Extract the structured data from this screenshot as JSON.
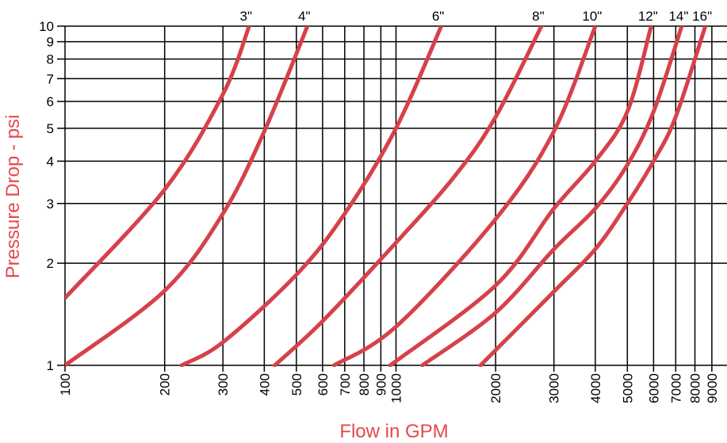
{
  "chart_data": {
    "type": "line",
    "title": "",
    "xlabel": "Flow in GPM",
    "ylabel": "Pressure Drop - psi",
    "x_scale": "log",
    "y_scale": "log",
    "xlim": [
      100,
      9000
    ],
    "ylim": [
      1,
      10
    ],
    "grid": true,
    "x_ticks": [
      {
        "value": 100,
        "label": "100"
      },
      {
        "value": 200,
        "label": "200"
      },
      {
        "value": 300,
        "label": "300"
      },
      {
        "value": 400,
        "label": "400"
      },
      {
        "value": 500,
        "label": "500"
      },
      {
        "value": 600,
        "label": "600"
      },
      {
        "value": 700,
        "label": "700"
      },
      {
        "value": 800,
        "label": "800"
      },
      {
        "value": 900,
        "label": "900"
      },
      {
        "value": 1000,
        "label": "1000"
      },
      {
        "value": 2000,
        "label": "2000"
      },
      {
        "value": 3000,
        "label": "3000"
      },
      {
        "value": 4000,
        "label": "4000"
      },
      {
        "value": 5000,
        "label": "5000"
      },
      {
        "value": 6000,
        "label": "6000"
      },
      {
        "value": 7000,
        "label": "7000"
      },
      {
        "value": 8000,
        "label": "8000"
      },
      {
        "value": 9000,
        "label": "9000"
      }
    ],
    "y_ticks": [
      {
        "value": 1,
        "label": "1"
      },
      {
        "value": 2,
        "label": "2"
      },
      {
        "value": 3,
        "label": "3"
      },
      {
        "value": 4,
        "label": "4"
      },
      {
        "value": 5,
        "label": "5"
      },
      {
        "value": 6,
        "label": "6"
      },
      {
        "value": 7,
        "label": "7"
      },
      {
        "value": 8,
        "label": "8"
      },
      {
        "value": 9,
        "label": "9"
      },
      {
        "value": 10,
        "label": "10"
      }
    ],
    "series": [
      {
        "name": "3\"",
        "points": [
          [
            100,
            1.58
          ],
          [
            200,
            3.3
          ],
          [
            300,
            6.3
          ],
          [
            360,
            10
          ]
        ]
      },
      {
        "name": "4\"",
        "points": [
          [
            100,
            1.0
          ],
          [
            200,
            1.66
          ],
          [
            300,
            2.8
          ],
          [
            400,
            4.9
          ],
          [
            540,
            10
          ]
        ]
      },
      {
        "name": "6\"",
        "points": [
          [
            225,
            1.0
          ],
          [
            300,
            1.17
          ],
          [
            500,
            1.85
          ],
          [
            700,
            2.8
          ],
          [
            1000,
            5.0
          ],
          [
            1370,
            10
          ]
        ]
      },
      {
        "name": "8\"",
        "points": [
          [
            430,
            1.0
          ],
          [
            600,
            1.35
          ],
          [
            1000,
            2.3
          ],
          [
            1500,
            3.6
          ],
          [
            2000,
            5.4
          ],
          [
            2750,
            10
          ]
        ]
      },
      {
        "name": "10\"",
        "points": [
          [
            650,
            1.0
          ],
          [
            1000,
            1.3
          ],
          [
            2000,
            2.7
          ],
          [
            3000,
            4.9
          ],
          [
            4000,
            10
          ]
        ]
      },
      {
        "name": "12\"",
        "points": [
          [
            960,
            1.0
          ],
          [
            2000,
            1.72
          ],
          [
            3000,
            2.9
          ],
          [
            4000,
            4.0
          ],
          [
            5000,
            5.6
          ],
          [
            5900,
            10
          ]
        ]
      },
      {
        "name": "14\"",
        "points": [
          [
            1200,
            1.0
          ],
          [
            2000,
            1.43
          ],
          [
            3000,
            2.2
          ],
          [
            4000,
            2.9
          ],
          [
            5000,
            3.9
          ],
          [
            6000,
            5.6
          ],
          [
            7300,
            10
          ]
        ]
      },
      {
        "name": "16\"",
        "points": [
          [
            1800,
            1.0
          ],
          [
            3000,
            1.65
          ],
          [
            4000,
            2.2
          ],
          [
            5000,
            3.0
          ],
          [
            6000,
            4.0
          ],
          [
            7000,
            5.4
          ],
          [
            8600,
            10
          ]
        ]
      }
    ],
    "line_color": "#d6414a",
    "axis_title_color": "#e5484d"
  }
}
